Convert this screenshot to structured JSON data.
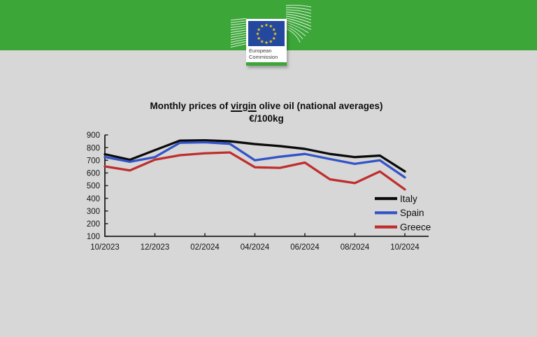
{
  "banner": {
    "logo_line1": "European",
    "logo_line2": "Commission"
  },
  "chart_data": {
    "type": "line",
    "title": "Monthly prices of virgin olive oil (national averages)",
    "title_prefix": "Monthly prices of ",
    "title_underlined": "virgin",
    "title_suffix": " olive oil (national averages)",
    "subtitle": "€/100kg",
    "categories": [
      "10/2023",
      "11/2023",
      "12/2023",
      "01/2024",
      "02/2024",
      "03/2024",
      "04/2024",
      "05/2024",
      "06/2024",
      "07/2024",
      "08/2024",
      "09/2024",
      "10/2024"
    ],
    "x_tick_labels": [
      "10/2023",
      "12/2023",
      "02/2024",
      "04/2024",
      "06/2024",
      "08/2024",
      "10/2024"
    ],
    "y_ticks": [
      100,
      200,
      300,
      400,
      500,
      600,
      700,
      800,
      900
    ],
    "ylim": [
      100,
      900
    ],
    "grid": false,
    "legend_position": "bottom-right",
    "series": [
      {
        "name": "Italy",
        "color": "#0b0b0b",
        "values": [
          748,
          704,
          780,
          855,
          858,
          850,
          828,
          812,
          790,
          750,
          725,
          737,
          612
        ]
      },
      {
        "name": "Spain",
        "color": "#3353c8",
        "values": [
          726,
          688,
          725,
          838,
          842,
          830,
          700,
          728,
          750,
          710,
          672,
          700,
          565
        ]
      },
      {
        "name": "Greece",
        "color": "#bf2e2e",
        "values": [
          652,
          620,
          705,
          740,
          755,
          762,
          645,
          640,
          682,
          550,
          520,
          612,
          470
        ]
      }
    ]
  },
  "colors": {
    "banner_green": "#3ca639",
    "background_gray": "#d7d7d7",
    "flag_blue": "#24489e",
    "star_yellow": "#f7d117"
  }
}
